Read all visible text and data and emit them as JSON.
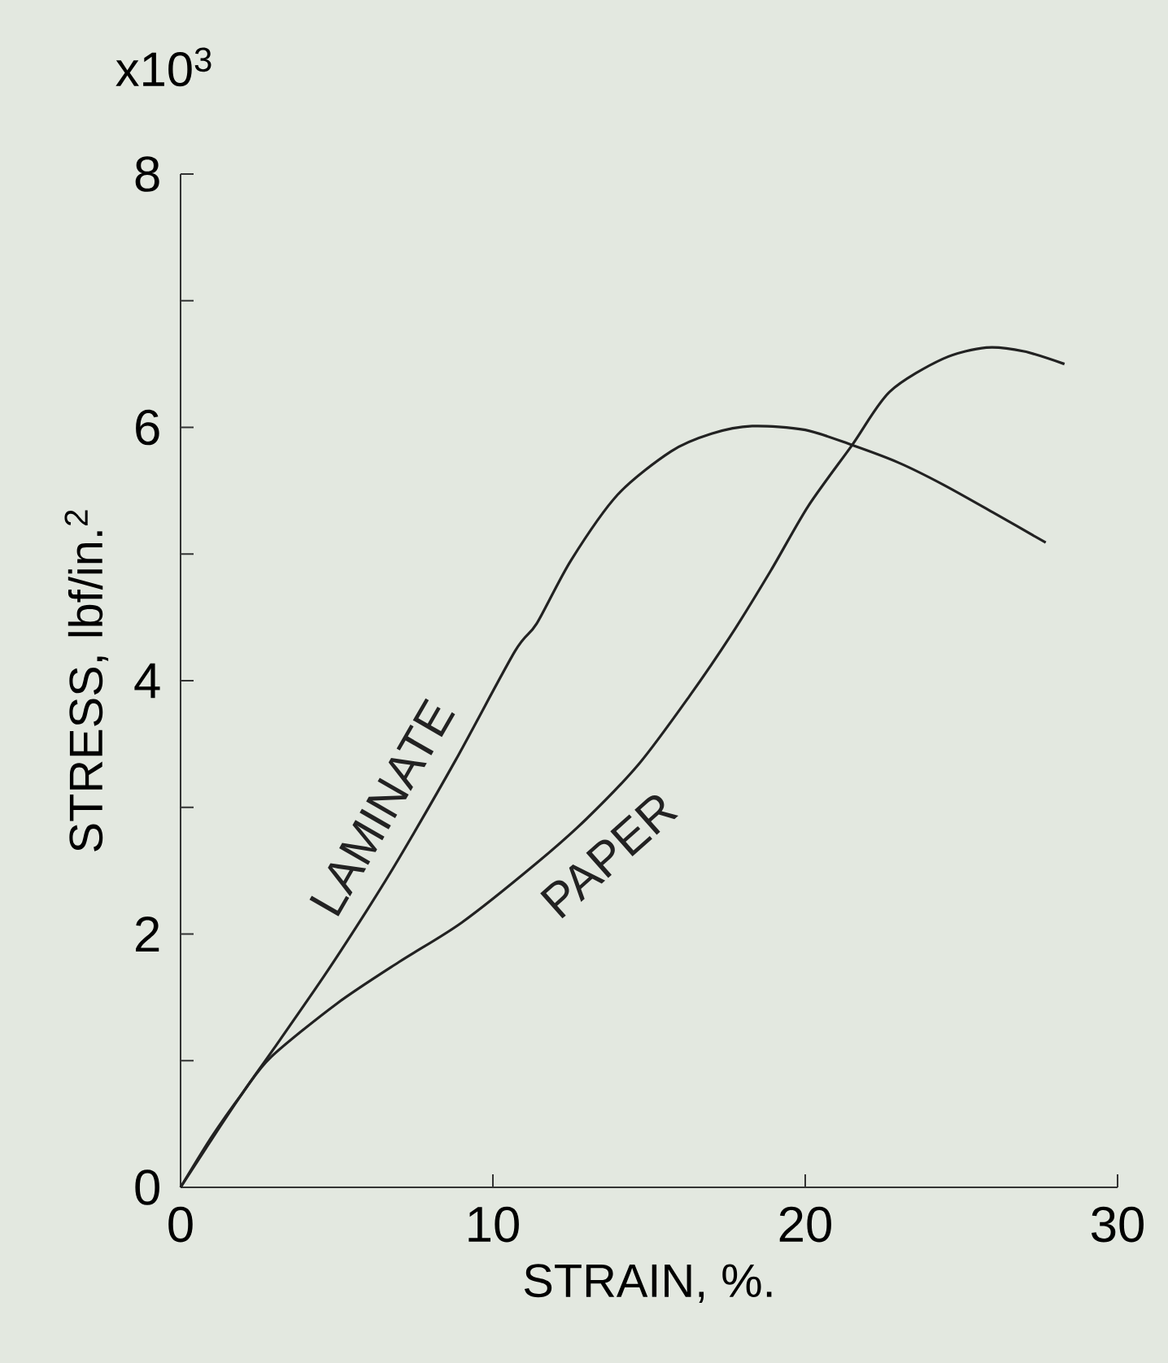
{
  "chart_data": {
    "type": "line",
    "xlabel": "STRAIN, %.",
    "ylabel": "STRESS, lbf/in.$^{2}$",
    "annotations": [
      "x10$^{3}$"
    ],
    "xlim": [
      0,
      30
    ],
    "xticks": [
      0,
      10,
      20,
      30
    ],
    "ylim": [
      0,
      8
    ],
    "yticks": [
      0,
      {
        "value": 1,
        "label": null
      },
      2,
      {
        "value": 3,
        "label": null
      },
      4,
      {
        "value": 5,
        "label": null
      },
      6,
      {
        "value": 7,
        "label": null
      },
      8
    ],
    "grid": false,
    "legend": false,
    "marker": "none",
    "line_style": "solid",
    "series": [
      {
        "name": "LAMINATE",
        "color": "#222222",
        "x": [
          0,
          1,
          2,
          3,
          4.6,
          6,
          7,
          8.8,
          10.7,
          11.4,
          12.5,
          14,
          15.7,
          17,
          18.3,
          20,
          21.5,
          23,
          24.4,
          26,
          27.7
        ],
        "values": [
          0,
          0.38,
          0.75,
          1.1,
          1.67,
          2.2,
          2.6,
          3.37,
          4.23,
          4.45,
          4.95,
          5.47,
          5.81,
          5.95,
          6.01,
          5.98,
          5.86,
          5.72,
          5.55,
          5.33,
          5.09
        ]
      },
      {
        "name": "PAPER",
        "color": "#222222",
        "x": [
          0,
          1,
          2,
          2.9,
          5,
          7,
          9,
          11.4,
          13,
          14.7,
          16.3,
          17.6,
          18.9,
          20.1,
          21.5,
          22.7,
          24.4,
          25.8,
          27,
          28.3
        ],
        "values": [
          0,
          0.4,
          0.75,
          1.03,
          1.45,
          1.78,
          2.09,
          2.56,
          2.91,
          3.35,
          3.88,
          4.35,
          4.87,
          5.38,
          5.86,
          6.28,
          6.54,
          6.63,
          6.6,
          6.5
        ]
      }
    ]
  }
}
